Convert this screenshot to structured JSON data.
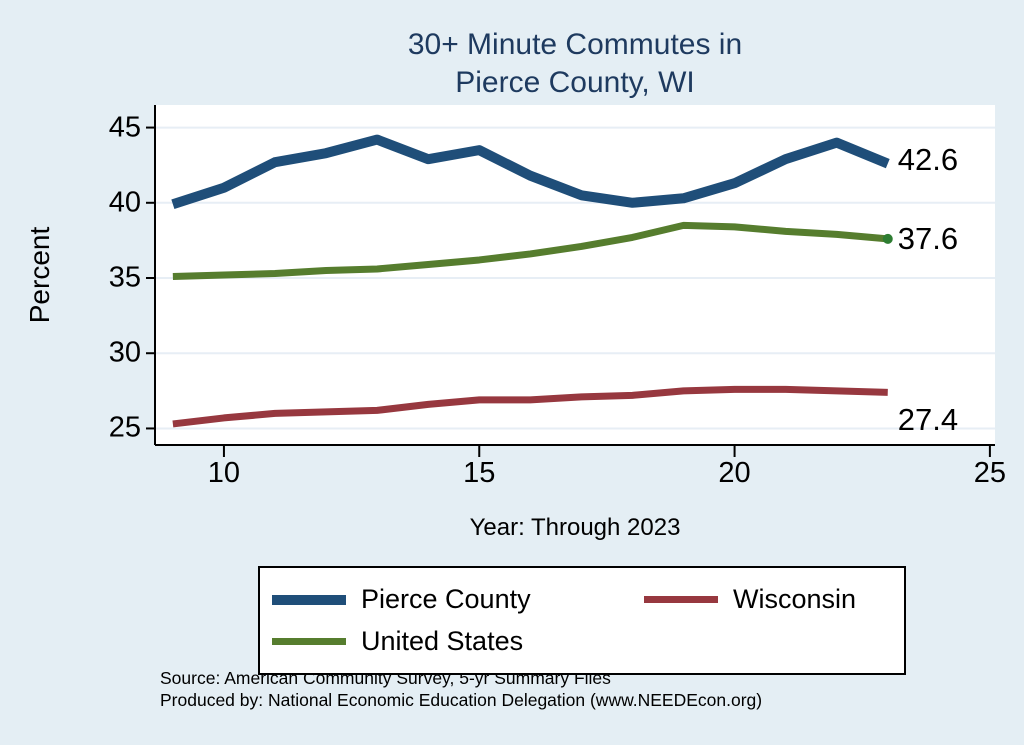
{
  "title": {
    "line1": "30+ Minute Commutes in",
    "line2": "Pierce County, WI"
  },
  "axes": {
    "y_label": "Percent",
    "x_label": "Year: Through 2023",
    "y_ticks": [
      45,
      40,
      35,
      30,
      25
    ],
    "x_ticks": [
      10,
      15,
      20,
      25
    ]
  },
  "chart_data": {
    "type": "line",
    "title": "30+ Minute Commutes in Pierce County, WI",
    "xlabel": "Year: Through 2023",
    "ylabel": "Percent",
    "grid": true,
    "legend_position": "bottom",
    "xlim": [
      8.65,
      25.1
    ],
    "ylim": [
      23.9,
      46.5
    ],
    "x": [
      9,
      10,
      11,
      12,
      13,
      14,
      15,
      16,
      17,
      18,
      19,
      20,
      21,
      22,
      23
    ],
    "series": [
      {
        "name": "Pierce County",
        "color": "#1f4e79",
        "width": 10,
        "values": [
          39.9,
          41.0,
          42.7,
          43.3,
          44.2,
          42.9,
          43.5,
          41.8,
          40.5,
          40.0,
          40.3,
          41.3,
          42.9,
          44.0,
          42.6
        ],
        "end_label": "42.6",
        "label_dy": -4,
        "end_marker": false
      },
      {
        "name": "Wisconsin",
        "color": "#97383f",
        "width": 7,
        "values": [
          25.3,
          25.7,
          26.0,
          26.1,
          26.2,
          26.6,
          26.9,
          26.9,
          27.1,
          27.2,
          27.5,
          27.6,
          27.6,
          27.5,
          27.4
        ],
        "end_label": "27.4",
        "label_dy": 28,
        "end_marker": false
      },
      {
        "name": "United States",
        "color": "#567d2e",
        "width": 7,
        "values": [
          35.1,
          35.2,
          35.3,
          35.5,
          35.6,
          35.9,
          36.2,
          36.6,
          37.1,
          37.7,
          38.5,
          38.4,
          38.1,
          37.9,
          37.6
        ],
        "end_label": "37.6",
        "label_dy": 0,
        "end_marker": true
      }
    ]
  },
  "colors": {
    "background": "#e4eef4",
    "plot_background": "#ffffff",
    "title_text": "#1e3a5f",
    "grid": "#e7eef5",
    "axis": "#000000",
    "marker_green": "#2e7d32"
  },
  "source": {
    "line1": "Source: American Community Survey, 5-yr Summary Files",
    "line2": "Produced by: National Economic Education Delegation (www.NEEDEcon.org)"
  }
}
